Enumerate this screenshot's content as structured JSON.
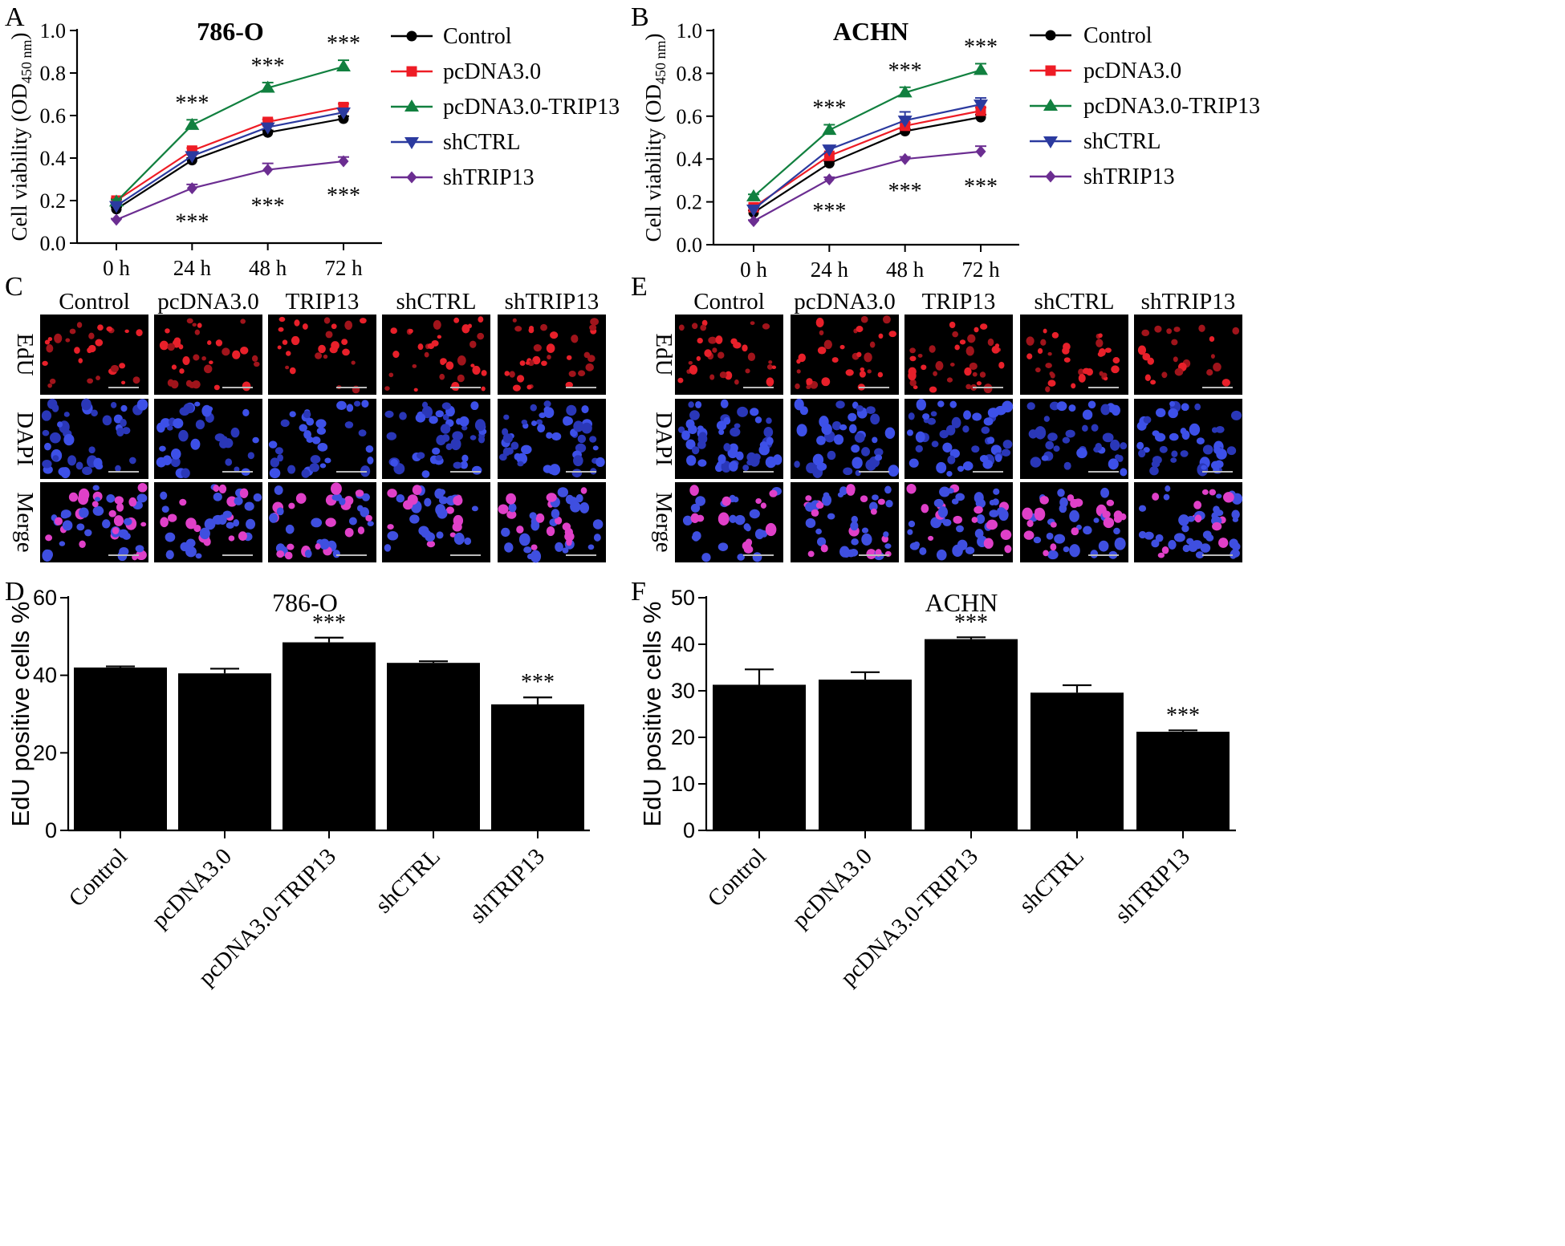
{
  "colors": {
    "control": "#000000",
    "pcdna": "#ee1c25",
    "trip13": "#11803f",
    "shctrl": "#2b3a9f",
    "shtrip13": "#6b2d91",
    "bar": "#000000"
  },
  "chart_data": [
    {
      "id": "A",
      "letter": "A",
      "type": "line",
      "title": "786-O",
      "ylabel": "Cell viability (OD450 nm)",
      "ylabel_main": "Cell viability (OD",
      "ylabel_sub": "450 nm",
      "ylabel_close": ")",
      "ylim": [
        0,
        1.0
      ],
      "yticks": [
        "0.0",
        "0.2",
        "0.4",
        "0.6",
        "0.8",
        "1.0"
      ],
      "categories": [
        "0 h",
        "24 h",
        "48 h",
        "72 h"
      ],
      "series": [
        {
          "name": "Control",
          "color": "#000000",
          "marker": "circle",
          "values": [
            0.16,
            0.39,
            0.52,
            0.585
          ],
          "err": [
            0.01,
            0.01,
            0.01,
            0.012
          ]
        },
        {
          "name": "pcDNA3.0",
          "color": "#ee1c25",
          "marker": "square",
          "values": [
            0.2,
            0.435,
            0.57,
            0.64
          ],
          "err": [
            0.01,
            0.012,
            0.012,
            0.015
          ]
        },
        {
          "name": "pcDNA3.0-TRIP13",
          "color": "#11803f",
          "marker": "triangle",
          "values": [
            0.195,
            0.555,
            0.73,
            0.83
          ],
          "err": [
            0.01,
            0.025,
            0.025,
            0.03
          ]
        },
        {
          "name": "shCTRL",
          "color": "#2b3a9f",
          "marker": "triangle-down",
          "values": [
            0.175,
            0.41,
            0.545,
            0.615
          ],
          "err": [
            0.01,
            0.01,
            0.01,
            0.012
          ]
        },
        {
          "name": "shTRIP13",
          "color": "#6b2d91",
          "marker": "diamond",
          "values": [
            0.11,
            0.258,
            0.345,
            0.385
          ],
          "err": [
            0.005,
            0.018,
            0.03,
            0.02
          ]
        }
      ],
      "annotations": [
        {
          "text": "***",
          "series": 2,
          "index": 1,
          "pos": "above"
        },
        {
          "text": "***",
          "series": 2,
          "index": 2,
          "pos": "above"
        },
        {
          "text": "***",
          "series": 2,
          "index": 3,
          "pos": "above"
        },
        {
          "text": "***",
          "series": 4,
          "index": 1,
          "pos": "below"
        },
        {
          "text": "***",
          "series": 4,
          "index": 2,
          "pos": "below"
        },
        {
          "text": "***",
          "series": 4,
          "index": 3,
          "pos": "below"
        }
      ]
    },
    {
      "id": "B",
      "letter": "B",
      "type": "line",
      "title": "ACHN",
      "ylabel": "Cell viability (OD450 nm)",
      "ylabel_main": "Cell viability (OD",
      "ylabel_sub": "450 nm",
      "ylabel_close": ")",
      "ylim": [
        0,
        1.0
      ],
      "yticks": [
        "0.0",
        "0.2",
        "0.4",
        "0.6",
        "0.8",
        "1.0"
      ],
      "categories": [
        "0 h",
        "24 h",
        "48 h",
        "72 h"
      ],
      "series": [
        {
          "name": "Control",
          "color": "#000000",
          "marker": "circle",
          "values": [
            0.15,
            0.38,
            0.53,
            0.595
          ],
          "err": [
            0.01,
            0.01,
            0.01,
            0.012
          ]
        },
        {
          "name": "pcDNA3.0",
          "color": "#ee1c25",
          "marker": "square",
          "values": [
            0.175,
            0.415,
            0.555,
            0.625
          ],
          "err": [
            0.01,
            0.012,
            0.015,
            0.015
          ]
        },
        {
          "name": "pcDNA3.0-TRIP13",
          "color": "#11803f",
          "marker": "triangle",
          "values": [
            0.225,
            0.535,
            0.71,
            0.815
          ],
          "err": [
            0.01,
            0.025,
            0.025,
            0.03
          ]
        },
        {
          "name": "shCTRL",
          "color": "#2b3a9f",
          "marker": "triangle-down",
          "values": [
            0.165,
            0.445,
            0.58,
            0.655
          ],
          "err": [
            0.01,
            0.01,
            0.04,
            0.03
          ]
        },
        {
          "name": "shTRIP13",
          "color": "#6b2d91",
          "marker": "diamond",
          "values": [
            0.11,
            0.305,
            0.4,
            0.435
          ],
          "err": [
            0.005,
            0.01,
            0.01,
            0.025
          ]
        }
      ],
      "annotations": [
        {
          "text": "***",
          "series": 2,
          "index": 1,
          "pos": "above"
        },
        {
          "text": "***",
          "series": 2,
          "index": 2,
          "pos": "above"
        },
        {
          "text": "***",
          "series": 2,
          "index": 3,
          "pos": "above"
        },
        {
          "text": "***",
          "series": 4,
          "index": 1,
          "pos": "below"
        },
        {
          "text": "***",
          "series": 4,
          "index": 2,
          "pos": "below"
        },
        {
          "text": "***",
          "series": 4,
          "index": 3,
          "pos": "below"
        }
      ]
    },
    {
      "id": "D",
      "letter": "D",
      "type": "bar",
      "title": "786-O",
      "ylabel": "EdU positive cells %",
      "ylim": [
        0,
        60
      ],
      "yticks": [
        "0",
        "20",
        "40",
        "60"
      ],
      "categories": [
        "Control",
        "pcDNA3.0",
        "pcDNA3.0-TRIP13",
        "shCTRL",
        "shTRIP13"
      ],
      "values": [
        42,
        40.5,
        48.5,
        43.2,
        32.5
      ],
      "err": [
        0.3,
        1.2,
        1.2,
        0.4,
        1.8
      ],
      "annotations": [
        {
          "text": "***",
          "index": 2
        },
        {
          "text": "***",
          "index": 4
        }
      ]
    },
    {
      "id": "F",
      "letter": "F",
      "type": "bar",
      "title": "ACHN",
      "ylabel": "EdU positive cells %",
      "ylim": [
        0,
        50
      ],
      "yticks": [
        "0",
        "10",
        "20",
        "30",
        "40",
        "50"
      ],
      "categories": [
        "Control",
        "pcDNA3.0",
        "pcDNA3.0-TRIP13",
        "shCTRL",
        "shTRIP13"
      ],
      "values": [
        31.3,
        32.4,
        41.1,
        29.6,
        21.2
      ],
      "err": [
        3.3,
        1.6,
        0.4,
        1.6,
        0.3
      ],
      "annotations": [
        {
          "text": "***",
          "index": 2
        },
        {
          "text": "***",
          "index": 4
        }
      ]
    }
  ],
  "image_grids": [
    {
      "id": "C",
      "letter": "C",
      "columns": [
        "Control",
        "pcDNA3.0",
        "TRIP13",
        "shCTRL",
        "shTRIP13"
      ],
      "rows": [
        "EdU",
        "DAPI",
        "Merge"
      ]
    },
    {
      "id": "E",
      "letter": "E",
      "columns": [
        "Control",
        "pcDNA3.0",
        "TRIP13",
        "shCTRL",
        "shTRIP13"
      ],
      "rows": [
        "EdU",
        "DAPI",
        "Merge"
      ]
    }
  ]
}
